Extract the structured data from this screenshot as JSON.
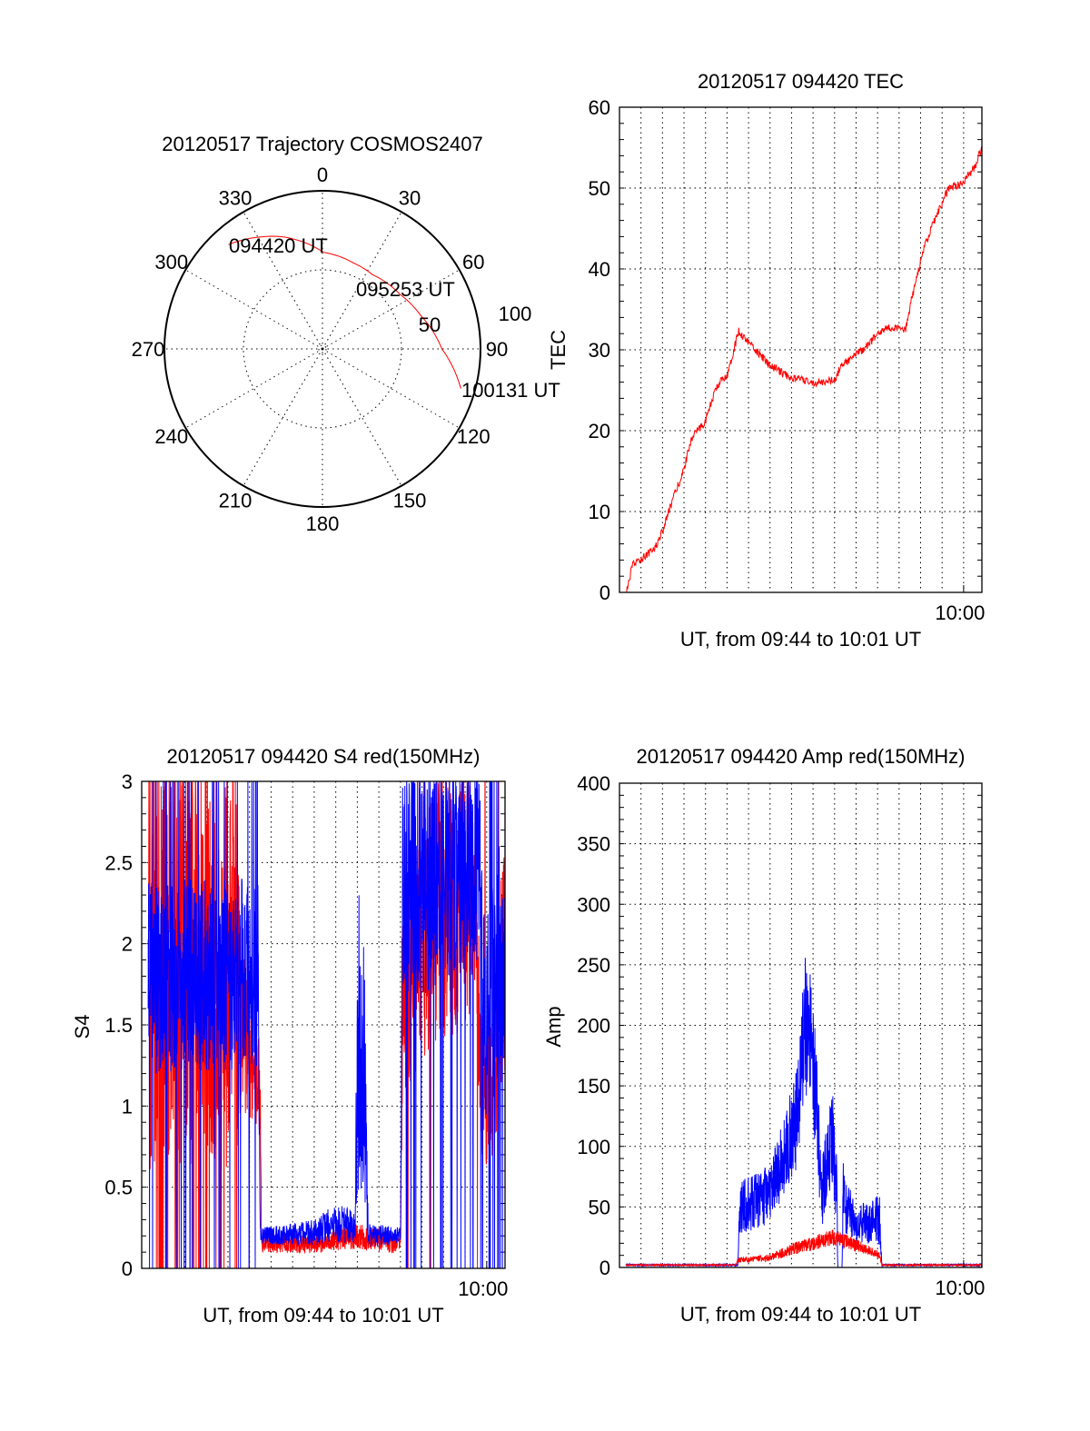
{
  "colors": {
    "red": "#ff0000",
    "blue": "#0000ff",
    "axis": "#000000"
  },
  "chart_data": [
    {
      "type": "polar",
      "title": "20120517 Trajectory COSMOS2407",
      "azimuth_labels": [
        "0",
        "30",
        "60",
        "90",
        "120",
        "150",
        "180",
        "210",
        "240",
        "270",
        "300",
        "330"
      ],
      "radial_labels": [
        "50",
        "100"
      ],
      "trajectory_az_el": [
        [
          318,
          10
        ],
        [
          340,
          22
        ],
        [
          0.6,
          35
        ],
        [
          20,
          38
        ],
        [
          34,
          39
        ],
        [
          55,
          36
        ],
        [
          71,
          31
        ],
        [
          90,
          22
        ],
        [
          106,
          8
        ]
      ],
      "time_labels": [
        "094420 UT",
        "095253 UT",
        "100131 UT"
      ]
    },
    {
      "type": "line",
      "title": "20120517 094420 TEC",
      "xlabel": "UT, from 09:44 to 10:01 UT",
      "ylabel": "TEC",
      "x_units": "minutes after 09:44",
      "xlim": [
        0,
        16.85
      ],
      "ylim": [
        0,
        60
      ],
      "yticks": [
        "0",
        "10",
        "20",
        "30",
        "40",
        "50",
        "60"
      ],
      "xtick_label": "10:00",
      "xtick_value": 16,
      "grid": true,
      "series": [
        {
          "name": "TEC",
          "color": "red",
          "points": [
            [
              0.33,
              0
            ],
            [
              0.6,
              3.3
            ],
            [
              1.65,
              5.5
            ],
            [
              1.99,
              7.5
            ],
            [
              2.48,
              11.5
            ],
            [
              2.98,
              15
            ],
            [
              3.33,
              19
            ],
            [
              3.96,
              21
            ],
            [
              4.53,
              25.5
            ],
            [
              5.02,
              27
            ],
            [
              5.54,
              32.3
            ],
            [
              7.0,
              28
            ],
            [
              7.97,
              26.6
            ],
            [
              9.1,
              25.9
            ],
            [
              10.0,
              26.2
            ],
            [
              10.3,
              28
            ],
            [
              11.2,
              29.8
            ],
            [
              12.2,
              32.3
            ],
            [
              12.6,
              32.8
            ],
            [
              13.3,
              32.5
            ],
            [
              13.6,
              36.5
            ],
            [
              14.2,
              43
            ],
            [
              14.8,
              47
            ],
            [
              15.3,
              50
            ],
            [
              15.9,
              50.5
            ],
            [
              16.5,
              52.5
            ],
            [
              16.85,
              55
            ]
          ],
          "noise": 0.5
        }
      ]
    },
    {
      "type": "line",
      "title": "20120517 094420 S4 red(150MHz)",
      "xlabel": "UT, from 09:44 to 10:01 UT",
      "ylabel": "S4",
      "x_units": "minutes after 09:44",
      "xlim": [
        0,
        16.85
      ],
      "ylim": [
        0,
        3
      ],
      "yticks": [
        "0",
        "0.5",
        "1",
        "1.5",
        "2",
        "2.5",
        "3"
      ],
      "xtick_label": "10:00",
      "xtick_value": 16,
      "grid": true,
      "series": [
        {
          "name": "S4 red",
          "color": "red",
          "envelope": [
            [
              0.3,
              1.8,
              1.2
            ],
            [
              4.4,
              1.8,
              1.2
            ],
            [
              4.6,
              1.5,
              0.5
            ],
            [
              5.5,
              1.1,
              0.3
            ],
            [
              5.55,
              0.15,
              0.05
            ],
            [
              8,
              0.15,
              0.06
            ],
            [
              10,
              0.2,
              0.08
            ],
            [
              12,
              0.15,
              0.06
            ],
            [
              12.1,
              1.6,
              0.6
            ],
            [
              13.5,
              2.2,
              0.8
            ],
            [
              15.5,
              2.2,
              0.8
            ],
            [
              15.8,
              1,
              0.4
            ],
            [
              16.3,
              1.2,
              0.5
            ],
            [
              16.85,
              2,
              0.8
            ]
          ],
          "spikes": [
            [
              0.3,
              4.4,
              0.22
            ],
            [
              12.1,
              16.85,
              0.05
            ]
          ]
        },
        {
          "name": "S4 blue",
          "color": "blue",
          "envelope": [
            [
              0.3,
              1.8,
              0.6
            ],
            [
              5.4,
              1.8,
              0.6
            ],
            [
              5.5,
              0.2,
              0.05
            ],
            [
              8,
              0.22,
              0.08
            ],
            [
              9,
              0.28,
              0.12
            ],
            [
              9.9,
              0.25,
              0.1
            ],
            [
              10.0,
              1.5,
              1.0
            ],
            [
              10.4,
              1.0,
              0.8
            ],
            [
              10.5,
              0.2,
              0.08
            ],
            [
              12.0,
              0.2,
              0.05
            ],
            [
              12.1,
              2.3,
              0.7
            ],
            [
              15.7,
              2.5,
              0.6
            ],
            [
              15.9,
              1.5,
              0.6
            ],
            [
              16.85,
              2,
              0.8
            ]
          ],
          "spikes": [
            [
              0.3,
              5.4,
              0.12
            ],
            [
              12.1,
              16.85,
              0.15
            ]
          ]
        }
      ]
    },
    {
      "type": "line",
      "title": "20120517 094420 Amp red(150MHz)",
      "xlabel": "UT, from 09:44 to 10:01 UT",
      "ylabel": "Amp",
      "x_units": "minutes after 09:44",
      "xlim": [
        0,
        16.85
      ],
      "ylim": [
        0,
        400
      ],
      "yticks": [
        "0",
        "50",
        "100",
        "150",
        "200",
        "250",
        "300",
        "350",
        "400"
      ],
      "xtick_label": "10:00",
      "xtick_value": 16,
      "grid": true,
      "series": [
        {
          "name": "Amp blue",
          "color": "blue",
          "envelope": [
            [
              0.3,
              2,
              0.8
            ],
            [
              5.5,
              2,
              0.8
            ],
            [
              5.6,
              50,
              22
            ],
            [
              7,
              60,
              25
            ],
            [
              7.5,
              85,
              30
            ],
            [
              8.2,
              120,
              40
            ],
            [
              8.7,
              210,
              70
            ],
            [
              9.1,
              150,
              50
            ],
            [
              9.4,
              60,
              30
            ],
            [
              9.9,
              110,
              40
            ],
            [
              10.1,
              60,
              30
            ],
            [
              10.15,
              0,
              0
            ],
            [
              10.35,
              0,
              0
            ],
            [
              10.4,
              60,
              30
            ],
            [
              11,
              35,
              15
            ],
            [
              12.1,
              40,
              22
            ],
            [
              12.2,
              2,
              0.8
            ],
            [
              16.85,
              2,
              0.8
            ]
          ],
          "spikes": []
        },
        {
          "name": "Amp red",
          "color": "red",
          "envelope": [
            [
              0.3,
              2,
              0.5
            ],
            [
              5.4,
              2,
              0.5
            ],
            [
              5.5,
              6,
              2
            ],
            [
              7,
              8,
              3
            ],
            [
              8,
              15,
              5
            ],
            [
              9,
              20,
              6
            ],
            [
              10,
              25,
              7
            ],
            [
              11.5,
              15,
              4
            ],
            [
              12.1,
              10,
              3
            ],
            [
              12.2,
              2,
              0.5
            ],
            [
              16.85,
              2,
              0.5
            ]
          ],
          "spikes": []
        }
      ]
    }
  ]
}
